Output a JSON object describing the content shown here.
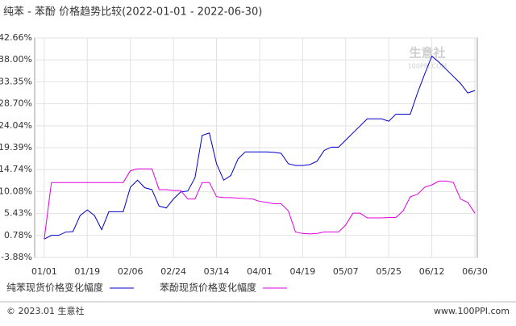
{
  "chart_data": {
    "type": "line",
    "title": "纯苯 - 苯酚 价格趋势比较(2022-01-01 - 2022-06-30)",
    "watermark": "生意社",
    "watermark_sub": "100PPI.COM",
    "source": "© 2023.01 生意社",
    "website": "www.100PPI.com",
    "x": [
      0,
      3,
      6,
      9,
      12,
      15,
      18,
      21,
      24,
      27,
      30,
      33,
      36,
      39,
      42,
      45,
      48,
      51,
      54,
      57,
      60,
      63,
      66,
      69,
      72,
      75,
      78,
      81,
      84,
      87,
      90,
      93,
      96,
      99,
      102,
      105,
      108,
      111,
      114,
      117,
      120,
      123,
      126,
      129,
      132,
      135,
      138,
      141,
      144,
      147,
      150,
      153,
      156,
      159,
      162,
      165,
      168,
      171,
      174,
      177,
      180
    ],
    "xlim": [
      -4,
      181
    ],
    "xticks": [
      {
        "value": 0,
        "label": "01/01"
      },
      {
        "value": 18,
        "label": "01/19"
      },
      {
        "value": 36,
        "label": "02/06"
      },
      {
        "value": 54,
        "label": "02/24"
      },
      {
        "value": 72,
        "label": "03/14"
      },
      {
        "value": 90,
        "label": "04/01"
      },
      {
        "value": 108,
        "label": "04/19"
      },
      {
        "value": 126,
        "label": "05/07"
      },
      {
        "value": 144,
        "label": "05/25"
      },
      {
        "value": 162,
        "label": "06/12"
      },
      {
        "value": 180,
        "label": "06/30"
      }
    ],
    "ylim": [
      -3.88,
      42.66
    ],
    "yticks": [
      {
        "value": 42.66,
        "label": "42.66%"
      },
      {
        "value": 38.0,
        "label": "38.00%"
      },
      {
        "value": 33.35,
        "label": "33.35%"
      },
      {
        "value": 28.7,
        "label": "28.70%"
      },
      {
        "value": 24.04,
        "label": "24.04%"
      },
      {
        "value": 19.39,
        "label": "19.39%"
      },
      {
        "value": 14.74,
        "label": "14.74%"
      },
      {
        "value": 10.08,
        "label": "10.08%"
      },
      {
        "value": 5.43,
        "label": "5.43%"
      },
      {
        "value": 0.78,
        "label": "0.78%"
      },
      {
        "value": -3.88,
        "label": "-3.88%"
      }
    ],
    "grid": true,
    "series": [
      {
        "name": "纯苯现货价格变化幅度",
        "color": "#0000cc",
        "values": [
          0,
          0.8,
          0.8,
          1.5,
          1.6,
          5,
          6.2,
          5,
          2,
          5.8,
          5.8,
          5.8,
          11,
          12.5,
          10.9,
          10.5,
          7,
          6.6,
          8.5,
          10,
          10.2,
          13,
          22,
          22.5,
          16,
          12.5,
          13.5,
          17,
          18.5,
          18.5,
          18.5,
          18.5,
          18.4,
          18.2,
          16,
          15.6,
          15.6,
          15.8,
          16.5,
          18.8,
          19.5,
          19.5,
          21,
          22.5,
          24,
          25.5,
          25.5,
          25.5,
          25,
          26.5,
          26.5,
          26.5,
          31,
          35,
          38.8,
          37.5,
          36,
          34.5,
          33,
          31,
          31.5
        ]
      },
      {
        "name": "苯酚现货价格变化幅度",
        "color": "#e000e0",
        "values": [
          0,
          12,
          12,
          12,
          12,
          12,
          12,
          12,
          12,
          12,
          12,
          12,
          14.5,
          14.9,
          14.9,
          14.9,
          10.5,
          10.5,
          10.3,
          10.3,
          8.5,
          8.5,
          12,
          12,
          9,
          8.8,
          8.8,
          8.7,
          8.6,
          8.5,
          8,
          7.8,
          7.5,
          7.5,
          6,
          1.5,
          1.2,
          1.1,
          1.2,
          1.5,
          1.5,
          1.5,
          3,
          5.5,
          5.5,
          4.5,
          4.5,
          4.5,
          4.6,
          4.6,
          6,
          9,
          9.5,
          11,
          11.5,
          12.3,
          12.3,
          12,
          8.5,
          7.8,
          5.5
        ]
      }
    ]
  }
}
